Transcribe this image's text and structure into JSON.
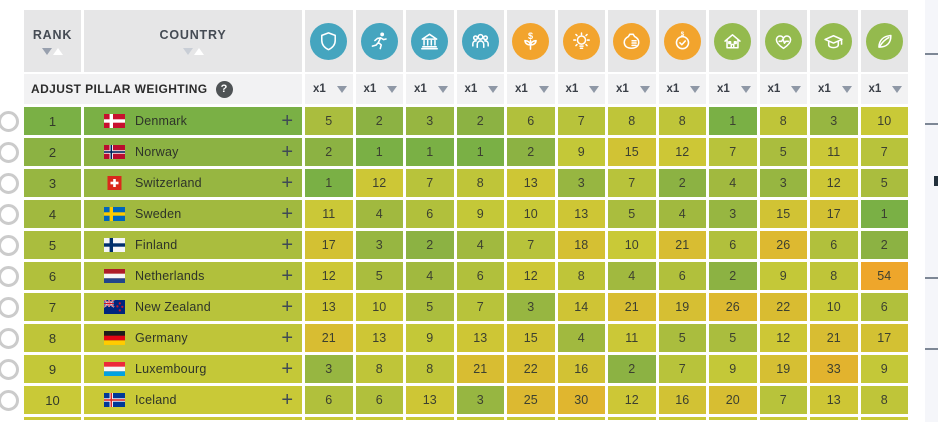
{
  "table": {
    "rank_header": "RANK",
    "country_header": "COUNTRY",
    "adjust_row": {
      "label": "ADJUST PILLAR WEIGHTING",
      "help": "?"
    },
    "pillars": [
      {
        "icon": "shield-icon",
        "color": "#45a5bf",
        "weight": "x1"
      },
      {
        "icon": "runner-icon",
        "color": "#45a5bf",
        "weight": "x1"
      },
      {
        "icon": "bank-icon",
        "color": "#45a5bf",
        "weight": "x1"
      },
      {
        "icon": "people-icon",
        "color": "#45a5bf",
        "weight": "x1"
      },
      {
        "icon": "sprout-dollar-icon",
        "color": "#f2a42d",
        "weight": "x1"
      },
      {
        "icon": "lightbulb-icon",
        "color": "#f2a42d",
        "weight": "x1"
      },
      {
        "icon": "money-bag-icon",
        "color": "#f2a42d",
        "weight": "x1"
      },
      {
        "icon": "stopwatch-dollar-icon",
        "color": "#f2a42d",
        "weight": "x1"
      },
      {
        "icon": "house-icon",
        "color": "#94ba4e",
        "weight": "x1"
      },
      {
        "icon": "heart-pulse-icon",
        "color": "#94ba4e",
        "weight": "x1"
      },
      {
        "icon": "graduation-cap-icon",
        "color": "#94ba4e",
        "weight": "x1"
      },
      {
        "icon": "leaf-icon",
        "color": "#94ba4e",
        "weight": "x1"
      }
    ],
    "rows": [
      {
        "rank": 1,
        "country": "Denmark",
        "flag": "dk",
        "expand": "+",
        "values": [
          5,
          2,
          3,
          2,
          6,
          7,
          8,
          8,
          1,
          8,
          3,
          10
        ]
      },
      {
        "rank": 2,
        "country": "Norway",
        "flag": "no",
        "expand": "+",
        "values": [
          2,
          1,
          1,
          1,
          2,
          9,
          15,
          12,
          7,
          5,
          11,
          7
        ]
      },
      {
        "rank": 3,
        "country": "Switzerland",
        "flag": "ch",
        "expand": "+",
        "values": [
          1,
          12,
          7,
          8,
          13,
          3,
          7,
          2,
          4,
          3,
          12,
          5
        ]
      },
      {
        "rank": 4,
        "country": "Sweden",
        "flag": "se",
        "expand": "+",
        "values": [
          11,
          4,
          6,
          9,
          10,
          13,
          5,
          4,
          3,
          15,
          17,
          1
        ]
      },
      {
        "rank": 5,
        "country": "Finland",
        "flag": "fi",
        "expand": "+",
        "values": [
          17,
          3,
          2,
          4,
          7,
          18,
          10,
          21,
          6,
          26,
          6,
          2
        ]
      },
      {
        "rank": 6,
        "country": "Netherlands",
        "flag": "nl",
        "expand": "+",
        "values": [
          12,
          5,
          4,
          6,
          12,
          8,
          4,
          6,
          2,
          9,
          8,
          54
        ]
      },
      {
        "rank": 7,
        "country": "New Zealand",
        "flag": "nz",
        "expand": "+",
        "values": [
          13,
          10,
          5,
          7,
          3,
          14,
          21,
          19,
          26,
          22,
          10,
          6
        ]
      },
      {
        "rank": 8,
        "country": "Germany",
        "flag": "de",
        "expand": "+",
        "values": [
          21,
          13,
          9,
          13,
          15,
          4,
          11,
          5,
          5,
          12,
          21,
          17
        ]
      },
      {
        "rank": 9,
        "country": "Luxembourg",
        "flag": "lu",
        "expand": "+",
        "values": [
          3,
          8,
          8,
          21,
          22,
          16,
          2,
          7,
          9,
          19,
          33,
          9
        ]
      },
      {
        "rank": 10,
        "country": "Iceland",
        "flag": "is",
        "expand": "+",
        "values": [
          6,
          6,
          13,
          3,
          25,
          30,
          12,
          16,
          20,
          7,
          13,
          8
        ]
      }
    ]
  },
  "colors": {
    "pillar_teal": "#45a5bf",
    "pillar_orange": "#f2a42d",
    "pillar_green": "#94ba4e",
    "header_bg": "#e6e6e7",
    "adjust_bg": "#f2f2f3",
    "scale_best": "#7cb245",
    "scale_worst": "#eea72d"
  }
}
